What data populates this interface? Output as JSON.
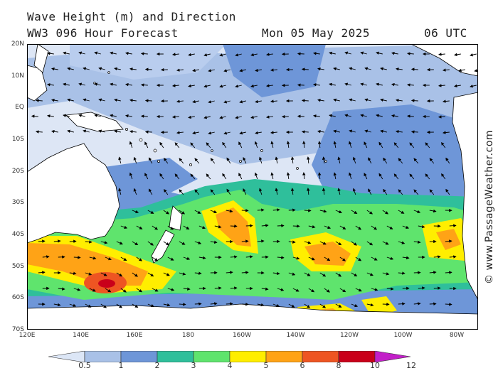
{
  "header": {
    "title": "Wave Height (m) and Direction",
    "model": "WW3 096 Hour Forecast",
    "date": "Mon 05 May 2025",
    "time": "06 UTC"
  },
  "map": {
    "lat_labels": [
      "20N",
      "10N",
      "EQ",
      "10S",
      "20S",
      "30S",
      "40S",
      "50S",
      "60S",
      "70S"
    ],
    "lon_labels": [
      "120E",
      "140E",
      "160E",
      "180",
      "160W",
      "140W",
      "120W",
      "100W",
      "80W"
    ],
    "colors": {
      "ocean_calm": "#dde6f5",
      "land": "#ffffff",
      "coast": "#000000"
    }
  },
  "legend": {
    "units": "m",
    "labels": [
      "0.5",
      "1",
      "2",
      "3",
      "4",
      "5",
      "6",
      "8",
      "10",
      "12"
    ],
    "colors": [
      "#dce6f6",
      "#a9c1e7",
      "#6e96d8",
      "#2fbf9b",
      "#5fe46d",
      "#ffee00",
      "#ffa316",
      "#ee5522",
      "#c9001a",
      "#c21fc8"
    ]
  },
  "credit": "© www.PassageWeather.com"
}
